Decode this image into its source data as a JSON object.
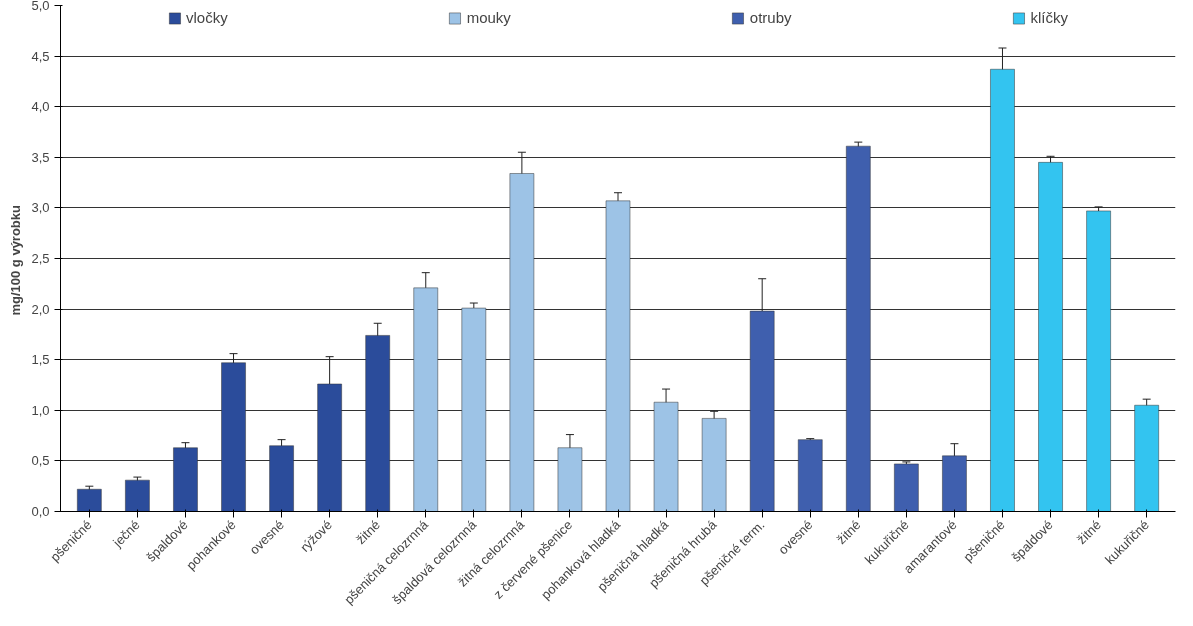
{
  "chart_data": {
    "type": "bar",
    "ylabel": "mg/100 g  výrobku",
    "categories": [
      "pšeničné",
      "ječné",
      "špaldové",
      "pohankové",
      "ovesné",
      "rýžové",
      "žitné",
      "pšeničná celozrnná",
      "špaldová celozrnná",
      "žitná celozrnná",
      "z červené pšenice",
      "pohanková hladká",
      "pšeničná hladká",
      "pšeničná hrubá",
      "pšeničné term.",
      "ovesné",
      "žitné",
      "kukuřičné",
      "amarantové",
      "pšeničné",
      "špaldové",
      "žitné",
      "kukuřičné"
    ],
    "series": [
      {
        "name": "vločky",
        "color": "#2b4c9b",
        "values": [
          0.22,
          0.31,
          0.63,
          1.47,
          0.65,
          1.26,
          1.74,
          null,
          null,
          null,
          null,
          null,
          null,
          null,
          null,
          null,
          null,
          null,
          null,
          null,
          null,
          null,
          null
        ],
        "errors": [
          0.03,
          0.03,
          0.05,
          0.09,
          0.06,
          0.27,
          0.12,
          null,
          null,
          null,
          null,
          null,
          null,
          null,
          null,
          null,
          null,
          null,
          null,
          null,
          null,
          null,
          null
        ]
      },
      {
        "name": "mouky",
        "color": "#9dc3e6",
        "values": [
          null,
          null,
          null,
          null,
          null,
          null,
          null,
          2.21,
          2.01,
          3.34,
          0.63,
          3.07,
          1.08,
          0.92,
          null,
          null,
          null,
          null,
          null,
          null,
          null,
          null,
          null
        ],
        "errors": [
          null,
          null,
          null,
          null,
          null,
          null,
          null,
          0.15,
          0.05,
          0.21,
          0.13,
          0.08,
          0.13,
          0.07,
          null,
          null,
          null,
          null,
          null,
          null,
          null,
          null,
          null
        ]
      },
      {
        "name": "otruby",
        "color": "#3f5fae",
        "values": [
          null,
          null,
          null,
          null,
          null,
          null,
          null,
          null,
          null,
          null,
          null,
          null,
          null,
          null,
          1.98,
          0.71,
          3.61,
          0.47,
          0.55,
          null,
          null,
          null,
          null
        ],
        "errors": [
          null,
          null,
          null,
          null,
          null,
          null,
          null,
          null,
          null,
          null,
          null,
          null,
          null,
          null,
          0.32,
          0.01,
          0.04,
          0.02,
          0.12,
          null,
          null,
          null,
          null
        ]
      },
      {
        "name": "klíčky",
        "color": "#33c4f0",
        "values": [
          null,
          null,
          null,
          null,
          null,
          null,
          null,
          null,
          null,
          null,
          null,
          null,
          null,
          null,
          null,
          null,
          null,
          null,
          null,
          4.37,
          3.45,
          2.97,
          1.05
        ],
        "errors": [
          null,
          null,
          null,
          null,
          null,
          null,
          null,
          null,
          null,
          null,
          null,
          null,
          null,
          null,
          null,
          null,
          null,
          null,
          null,
          0.21,
          0.06,
          0.04,
          0.06
        ]
      }
    ],
    "ylim": [
      0,
      5
    ],
    "yticks": [
      {
        "value": 0,
        "label": "0,0"
      },
      {
        "value": 0.5,
        "label": "0,5"
      },
      {
        "value": 1,
        "label": "1,0"
      },
      {
        "value": 1.5,
        "label": "1,5"
      },
      {
        "value": 2,
        "label": "2,0"
      },
      {
        "value": 2.5,
        "label": "2,5"
      },
      {
        "value": 3,
        "label": "3,0"
      },
      {
        "value": 3.5,
        "label": "3,5"
      },
      {
        "value": 4,
        "label": "4,0"
      },
      {
        "value": 4.5,
        "label": "4,5"
      },
      {
        "value": 5,
        "label": "5,0"
      }
    ],
    "grid": "y",
    "legend": "top"
  }
}
